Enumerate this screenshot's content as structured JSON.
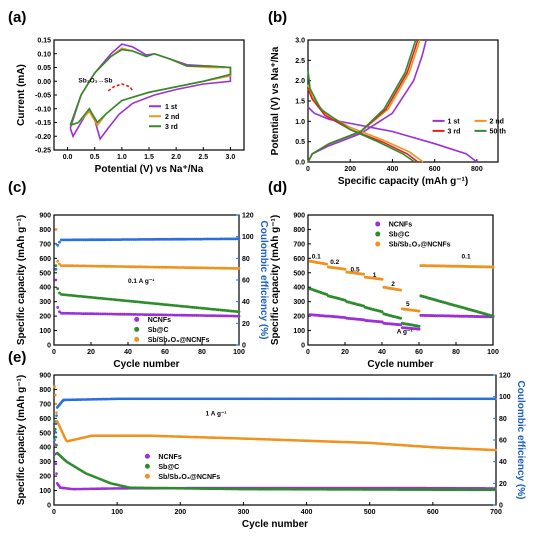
{
  "colors": {
    "purple": "#9b30d9",
    "green": "#2e8b2e",
    "orange": "#f0921e",
    "red": "#e02020",
    "blue": "#2a6fdb",
    "grey": "#666666"
  },
  "chart_data": [
    {
      "panel": "(a)",
      "type": "line",
      "xlabel": "Potential (V) vs Na⁺/Na",
      "ylabel": "Current (mA)",
      "xlim": [
        -0.25,
        3.25
      ],
      "ylim": [
        -0.25,
        0.15
      ],
      "xticks": [
        "0.0",
        "0.5",
        "1.0",
        "1.5",
        "2.0",
        "2.5",
        "3.0"
      ],
      "yticks": [
        "-0.25",
        "-0.20",
        "-0.15",
        "-0.10",
        "-0.05",
        "0.00",
        "0.05",
        "0.10",
        "0.15"
      ],
      "annotation": "Sb₂O₃→Sb",
      "series": [
        {
          "name": "1 st",
          "color": "purple",
          "points": [
            [
              0.05,
              -0.17
            ],
            [
              0.1,
              -0.2
            ],
            [
              0.25,
              -0.15
            ],
            [
              0.4,
              -0.1
            ],
            [
              0.5,
              -0.14
            ],
            [
              0.6,
              -0.21
            ],
            [
              0.75,
              -0.17
            ],
            [
              0.95,
              -0.12
            ],
            [
              1.2,
              -0.08
            ],
            [
              1.6,
              -0.05
            ],
            [
              2.0,
              -0.03
            ],
            [
              2.5,
              -0.01
            ],
            [
              3.0,
              0.0
            ],
            [
              3.0,
              0.05
            ],
            [
              2.6,
              0.055
            ],
            [
              2.2,
              0.06
            ],
            [
              1.9,
              0.08
            ],
            [
              1.6,
              0.1
            ],
            [
              1.45,
              0.095
            ],
            [
              1.2,
              0.125
            ],
            [
              1.0,
              0.135
            ],
            [
              0.8,
              0.1
            ],
            [
              0.5,
              0.03
            ],
            [
              0.25,
              -0.05
            ],
            [
              0.05,
              -0.17
            ]
          ]
        },
        {
          "name": "2 nd",
          "color": "orange",
          "points": [
            [
              0.05,
              -0.16
            ],
            [
              0.2,
              -0.15
            ],
            [
              0.4,
              -0.11
            ],
            [
              0.55,
              -0.16
            ],
            [
              0.7,
              -0.12
            ],
            [
              1.0,
              -0.07
            ],
            [
              1.5,
              -0.04
            ],
            [
              2.0,
              -0.02
            ],
            [
              2.5,
              0.0
            ],
            [
              3.0,
              0.02
            ],
            [
              3.0,
              0.05
            ],
            [
              2.6,
              0.05
            ],
            [
              2.2,
              0.055
            ],
            [
              1.9,
              0.08
            ],
            [
              1.6,
              0.1
            ],
            [
              1.45,
              0.09
            ],
            [
              1.2,
              0.11
            ],
            [
              1.0,
              0.12
            ],
            [
              0.8,
              0.09
            ],
            [
              0.5,
              0.03
            ],
            [
              0.25,
              -0.05
            ],
            [
              0.05,
              -0.16
            ]
          ]
        },
        {
          "name": "3 rd",
          "color": "green",
          "points": [
            [
              0.05,
              -0.16
            ],
            [
              0.2,
              -0.15
            ],
            [
              0.4,
              -0.1
            ],
            [
              0.55,
              -0.15
            ],
            [
              0.7,
              -0.12
            ],
            [
              1.0,
              -0.07
            ],
            [
              1.5,
              -0.04
            ],
            [
              2.0,
              -0.02
            ],
            [
              2.5,
              0.0
            ],
            [
              3.0,
              0.025
            ],
            [
              3.0,
              0.05
            ],
            [
              2.6,
              0.055
            ],
            [
              2.2,
              0.055
            ],
            [
              1.9,
              0.08
            ],
            [
              1.6,
              0.1
            ],
            [
              1.45,
              0.09
            ],
            [
              1.2,
              0.11
            ],
            [
              1.0,
              0.115
            ],
            [
              0.8,
              0.09
            ],
            [
              0.5,
              0.03
            ],
            [
              0.25,
              -0.05
            ],
            [
              0.05,
              -0.16
            ]
          ]
        },
        {
          "name": "",
          "color": "red",
          "dashed": true,
          "points": [
            [
              0.75,
              -0.035
            ],
            [
              0.85,
              -0.02
            ],
            [
              1.0,
              -0.01
            ],
            [
              1.15,
              -0.02
            ],
            [
              1.2,
              -0.035
            ]
          ]
        }
      ]
    },
    {
      "panel": "(b)",
      "type": "line",
      "xlabel": "Specific capacity (mAh g⁻¹)",
      "ylabel": "Potential (V) vs Na⁺/Na",
      "xlim": [
        0,
        900
      ],
      "ylim": [
        0,
        3.0
      ],
      "xticks": [
        "0",
        "200",
        "400",
        "600",
        "800"
      ],
      "yticks": [
        "0.0",
        "0.5",
        "1.0",
        "1.5",
        "2.0",
        "2.5",
        "3.0"
      ],
      "series": [
        {
          "name": "1 st",
          "color": "purple",
          "points": [
            [
              0,
              1.35
            ],
            [
              30,
              1.2
            ],
            [
              100,
              1.05
            ],
            [
              200,
              0.95
            ],
            [
              400,
              0.75
            ],
            [
              600,
              0.45
            ],
            [
              750,
              0.2
            ],
            [
              800,
              0.0
            ]
          ],
          "charge": [
            [
              0,
              0.0
            ],
            [
              20,
              0.2
            ],
            [
              100,
              0.4
            ],
            [
              250,
              0.7
            ],
            [
              400,
              1.2
            ],
            [
              500,
              2.0
            ],
            [
              540,
              2.6
            ],
            [
              560,
              3.0
            ]
          ]
        },
        {
          "name": "2 nd",
          "color": "orange",
          "points": [
            [
              0,
              1.9
            ],
            [
              20,
              1.6
            ],
            [
              80,
              1.2
            ],
            [
              200,
              0.85
            ],
            [
              350,
              0.55
            ],
            [
              480,
              0.25
            ],
            [
              545,
              0.0
            ]
          ],
          "charge": [
            [
              0,
              0.0
            ],
            [
              20,
              0.2
            ],
            [
              100,
              0.45
            ],
            [
              250,
              0.75
            ],
            [
              380,
              1.3
            ],
            [
              480,
              2.2
            ],
            [
              530,
              3.0
            ]
          ]
        },
        {
          "name": "3 rd",
          "color": "red",
          "points": [
            [
              0,
              1.8
            ],
            [
              20,
              1.55
            ],
            [
              80,
              1.15
            ],
            [
              200,
              0.8
            ],
            [
              350,
              0.5
            ],
            [
              470,
              0.2
            ],
            [
              520,
              0.0
            ]
          ],
          "charge": [
            [
              0,
              0.0
            ],
            [
              20,
              0.2
            ],
            [
              100,
              0.45
            ],
            [
              250,
              0.75
            ],
            [
              370,
              1.3
            ],
            [
              470,
              2.2
            ],
            [
              520,
              3.0
            ]
          ]
        },
        {
          "name": "50 th",
          "color": "green",
          "points": [
            [
              0,
              2.25
            ],
            [
              10,
              1.8
            ],
            [
              60,
              1.3
            ],
            [
              200,
              0.8
            ],
            [
              330,
              0.5
            ],
            [
              450,
              0.2
            ],
            [
              505,
              0.0
            ]
          ],
          "charge": [
            [
              0,
              0.0
            ],
            [
              20,
              0.2
            ],
            [
              100,
              0.45
            ],
            [
              250,
              0.75
            ],
            [
              360,
              1.3
            ],
            [
              460,
              2.2
            ],
            [
              510,
              3.0
            ]
          ]
        }
      ]
    },
    {
      "panel": "(c)",
      "type": "scatter",
      "xlabel": "Cycle number",
      "ylabel": "Specific capacity (mAh g⁻¹)",
      "y2label": "Coulombic efficiency (%)",
      "xlim": [
        0,
        100
      ],
      "ylim": [
        0,
        900
      ],
      "y2lim": [
        0,
        120
      ],
      "xticks": [
        "0",
        "20",
        "40",
        "60",
        "80",
        "100"
      ],
      "yticks": [
        "0",
        "100",
        "200",
        "300",
        "400",
        "500",
        "600",
        "700",
        "800",
        "900"
      ],
      "y2ticks": [
        "0",
        "20",
        "40",
        "60",
        "80",
        "100",
        "120"
      ],
      "annotation": "0.1 A g⁻¹",
      "series": [
        {
          "name": "NCNFs",
          "color": "purple",
          "start": [
            [
              1,
              450
            ],
            [
              2,
              260
            ],
            [
              3,
              230
            ]
          ],
          "from": 220,
          "to": 200
        },
        {
          "name": "Sb@C",
          "color": "green",
          "start": [
            [
              1,
              550
            ],
            [
              2,
              390
            ],
            [
              3,
              360
            ]
          ],
          "from": 350,
          "to": 230
        },
        {
          "name": "Sb/Sb₂O₃@NCNFs",
          "color": "orange",
          "start": [
            [
              1,
              800
            ],
            [
              2,
              580
            ],
            [
              3,
              560
            ]
          ],
          "from": 550,
          "to": 530
        },
        {
          "name": "",
          "color": "blue",
          "axis": "y2",
          "start": [
            [
              1,
              70
            ],
            [
              2,
              92
            ],
            [
              3,
              95
            ]
          ],
          "from": 97,
          "to": 98
        }
      ]
    },
    {
      "panel": "(d)",
      "type": "scatter",
      "xlabel": "Cycle number",
      "ylabel": "Specific capacity (mAh g⁻¹)",
      "xlim": [
        0,
        100
      ],
      "ylim": [
        0,
        900
      ],
      "xticks": [
        "0",
        "20",
        "40",
        "60",
        "80",
        "100"
      ],
      "yticks": [
        "0",
        "100",
        "200",
        "300",
        "400",
        "500",
        "600",
        "700",
        "800",
        "900"
      ],
      "rate_labels": [
        "0.1",
        "0.2",
        "0.5",
        "1",
        "2",
        "5",
        "0.1"
      ],
      "unit_label": "A g⁻¹",
      "series": [
        {
          "name": "NCNFs",
          "color": "purple",
          "segments": [
            [
              210,
              200
            ],
            [
              200,
              190
            ],
            [
              185,
              175
            ],
            [
              170,
              160
            ],
            [
              150,
              140
            ],
            [
              120,
              110
            ],
            [
              205,
              195
            ]
          ]
        },
        {
          "name": "Sb@C",
          "color": "green",
          "segments": [
            [
              390,
              350
            ],
            [
              340,
              310
            ],
            [
              300,
              270
            ],
            [
              260,
              230
            ],
            [
              215,
              185
            ],
            [
              150,
              130
            ],
            [
              340,
              200
            ]
          ]
        },
        {
          "name": "Sb/Sb₂O₃@NCNFs",
          "color": "orange",
          "segments": [
            [
              580,
              560
            ],
            [
              540,
              525
            ],
            [
              505,
              490
            ],
            [
              470,
              455
            ],
            [
              400,
              380
            ],
            [
              250,
              235
            ],
            [
              550,
              540
            ]
          ]
        }
      ]
    },
    {
      "panel": "(e)",
      "type": "scatter",
      "xlabel": "Cycle number",
      "ylabel": "Specific capacity (mAh g⁻¹)",
      "y2label": "Coulombic efficiency (%)",
      "xlim": [
        0,
        700
      ],
      "ylim": [
        0,
        900
      ],
      "y2lim": [
        0,
        120
      ],
      "xticks": [
        "0",
        "100",
        "200",
        "300",
        "400",
        "500",
        "600",
        "700"
      ],
      "yticks": [
        "0",
        "100",
        "200",
        "300",
        "400",
        "500",
        "600",
        "700",
        "800",
        "900"
      ],
      "y2ticks": [
        "0",
        "20",
        "40",
        "60",
        "80",
        "100",
        "120"
      ],
      "annotation": "1 A g⁻¹",
      "series": [
        {
          "name": "NCNFs",
          "color": "purple",
          "points": [
            [
              1,
              420
            ],
            [
              5,
              150
            ],
            [
              10,
              120
            ],
            [
              30,
              110
            ],
            [
              100,
              115
            ],
            [
              300,
              118
            ],
            [
              500,
              118
            ],
            [
              700,
              115
            ]
          ]
        },
        {
          "name": "Sb@C",
          "color": "green",
          "points": [
            [
              1,
              580
            ],
            [
              5,
              360
            ],
            [
              20,
              300
            ],
            [
              50,
              220
            ],
            [
              90,
              150
            ],
            [
              120,
              120
            ],
            [
              300,
              110
            ],
            [
              700,
              105
            ]
          ]
        },
        {
          "name": "Sb/Sb₂O₃@NCNFs",
          "color": "orange",
          "points": [
            [
              1,
              820
            ],
            [
              5,
              580
            ],
            [
              20,
              440
            ],
            [
              60,
              480
            ],
            [
              150,
              480
            ],
            [
              300,
              460
            ],
            [
              500,
              430
            ],
            [
              600,
              400
            ],
            [
              700,
              380
            ]
          ]
        },
        {
          "name": "",
          "color": "blue",
          "axis": "y2",
          "points": [
            [
              1,
              60
            ],
            [
              5,
              90
            ],
            [
              15,
              97
            ],
            [
              100,
              98
            ],
            [
              700,
              98
            ]
          ]
        }
      ]
    }
  ]
}
